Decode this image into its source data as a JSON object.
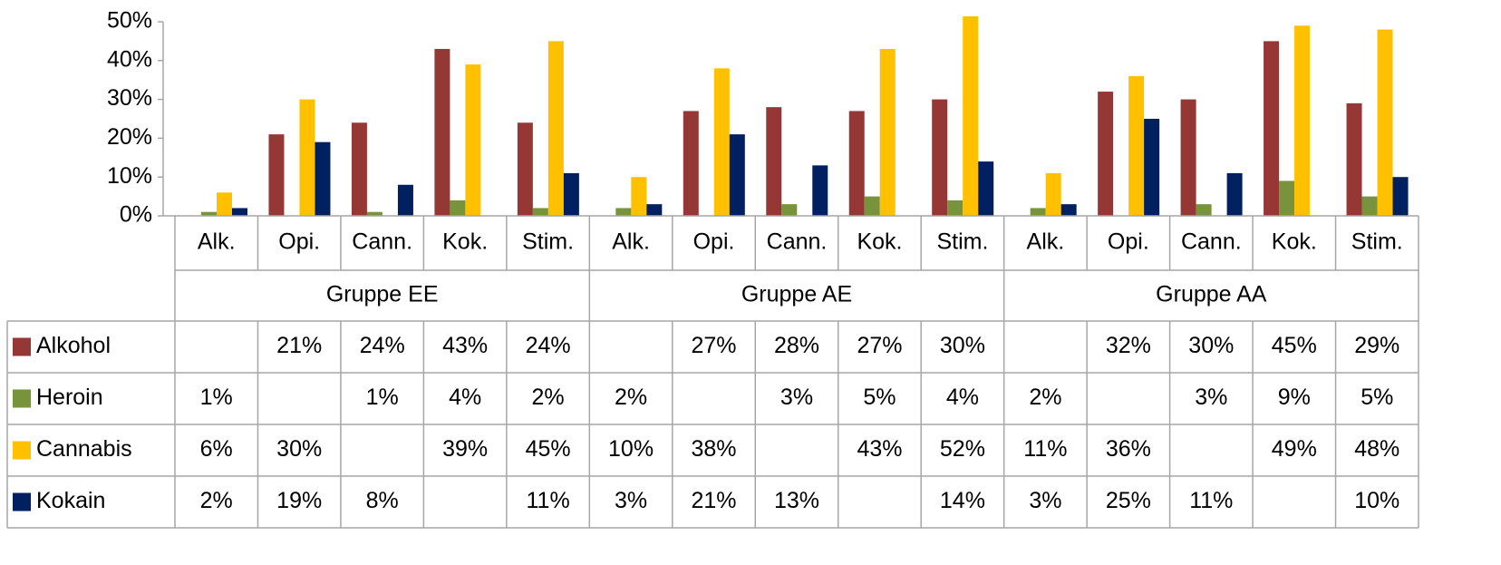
{
  "chart_data": {
    "type": "bar",
    "categories": [
      "Alk.",
      "Opi.",
      "Cann.",
      "Kok.",
      "Stim.",
      "Alk.",
      "Opi.",
      "Cann.",
      "Kok.",
      "Stim.",
      "Alk.",
      "Opi.",
      "Cann.",
      "Kok.",
      "Stim."
    ],
    "groups": [
      "Gruppe EE",
      "Gruppe AE",
      "Gruppe AA"
    ],
    "series": [
      {
        "name": "Alkohol",
        "color": "#953735",
        "values": [
          null,
          21,
          24,
          43,
          24,
          null,
          27,
          28,
          27,
          30,
          null,
          32,
          30,
          45,
          29
        ],
        "value_labels": [
          null,
          "21%",
          "24%",
          "43%",
          "24%",
          null,
          "27%",
          "28%",
          "27%",
          "30%",
          null,
          "32%",
          "30%",
          "45%",
          "29%"
        ]
      },
      {
        "name": "Heroin",
        "color": "#77933c",
        "values": [
          1,
          null,
          1,
          4,
          2,
          2,
          null,
          3,
          5,
          4,
          2,
          null,
          3,
          9,
          5
        ],
        "value_labels": [
          "1%",
          null,
          "1%",
          "4%",
          "2%",
          "2%",
          null,
          "3%",
          "5%",
          "4%",
          "2%",
          null,
          "3%",
          "9%",
          "5%"
        ]
      },
      {
        "name": "Cannabis",
        "color": "#ffc000",
        "values": [
          6,
          30,
          null,
          39,
          45,
          10,
          38,
          null,
          43,
          52,
          11,
          36,
          null,
          49,
          48
        ],
        "value_labels": [
          "6%",
          "30%",
          null,
          "39%",
          "45%",
          "10%",
          "38%",
          null,
          "43%",
          "52%",
          "11%",
          "36%",
          null,
          "49%",
          "48%"
        ]
      },
      {
        "name": "Kokain",
        "color": "#002060",
        "values": [
          2,
          19,
          8,
          null,
          11,
          3,
          21,
          13,
          null,
          14,
          3,
          25,
          11,
          null,
          10
        ],
        "value_labels": [
          "2%",
          "19%",
          "8%",
          null,
          "11%",
          "3%",
          "21%",
          "13%",
          null,
          "14%",
          "3%",
          "25%",
          "11%",
          null,
          "10%"
        ]
      }
    ],
    "ylim": [
      0,
      50
    ],
    "yticks": [
      {
        "value": 0,
        "label": "0%"
      },
      {
        "value": 10,
        "label": "10%"
      },
      {
        "value": 20,
        "label": "20%"
      },
      {
        "value": 30,
        "label": "30%"
      },
      {
        "value": 40,
        "label": "40%"
      },
      {
        "value": 50,
        "label": "50%"
      }
    ],
    "grid": false,
    "legend": "table"
  }
}
